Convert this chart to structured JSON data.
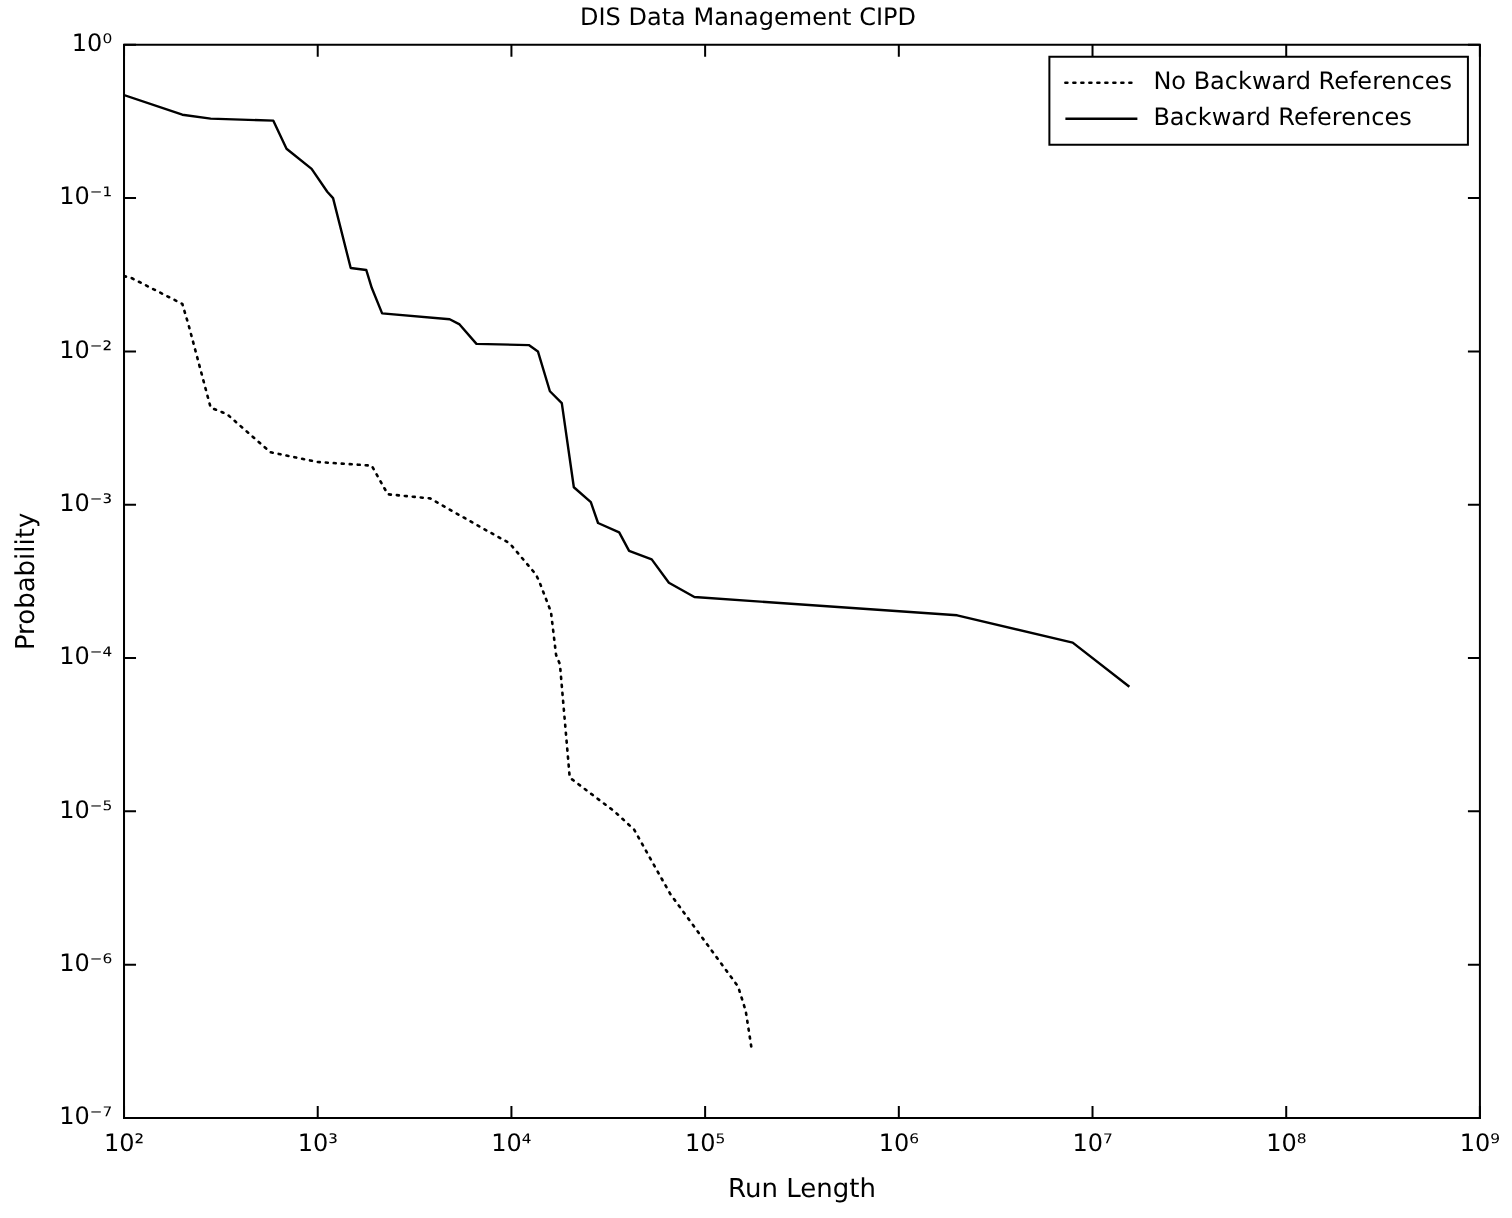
{
  "chart_data": {
    "type": "line",
    "title": "DIS Data Management CIPD",
    "xlabel": "Run Length",
    "ylabel": "Probability",
    "log": "xy",
    "grid": false,
    "legend": "top right",
    "marker": "none",
    "xlim": [
      100,
      1000000000
    ],
    "ylim": [
      1e-07,
      1
    ],
    "xticks": [
      {
        "value": 100,
        "label": "10²"
      },
      {
        "value": 1000,
        "label": "10³"
      },
      {
        "value": 10000,
        "label": "10⁴"
      },
      {
        "value": 100000,
        "label": "10⁵"
      },
      {
        "value": 1000000,
        "label": "10⁶"
      },
      {
        "value": 10000000,
        "label": "10⁷"
      },
      {
        "value": 100000000,
        "label": "10⁸"
      },
      {
        "value": 1000000000,
        "label": "10⁹"
      }
    ],
    "yticks": [
      {
        "value": 1e-07,
        "label": "10⁻⁷"
      },
      {
        "value": 1e-06,
        "label": "10⁻⁶"
      },
      {
        "value": 1e-05,
        "label": "10⁻⁵"
      },
      {
        "value": 0.0001,
        "label": "10⁻⁴"
      },
      {
        "value": 0.001,
        "label": "10⁻³"
      },
      {
        "value": 0.01,
        "label": "10⁻²"
      },
      {
        "value": 0.1,
        "label": "10⁻¹"
      },
      {
        "value": 1,
        "label": "10⁰"
      }
    ],
    "series": [
      {
        "name": "No Backward References",
        "color": "#000000",
        "line_style": "dotted",
        "x": [
          100,
          110,
          200,
          215,
          280,
          340,
          570,
          1000,
          1900,
          2300,
          3800,
          6600,
          9800,
          13400,
          14000,
          16000,
          17000,
          17800,
          20000,
          34000,
          43000,
          66000,
          105000,
          148000,
          162000,
          174000
        ],
        "values": [
          0.031,
          0.03,
          0.0204,
          0.015,
          0.0043,
          0.0039,
          0.0022,
          0.0019,
          0.0018,
          0.00117,
          0.0011,
          0.00074,
          0.00056,
          0.00035,
          0.00031,
          0.0002,
          0.000105,
          9.1e-05,
          1.66e-05,
          1e-05,
          7.6e-06,
          2.9e-06,
          1.3e-06,
          7.2e-07,
          5e-07,
          2.8e-07
        ]
      },
      {
        "name": "Backward References",
        "color": "#000000",
        "line_style": "solid",
        "x": [
          100,
          200,
          280,
          590,
          690,
          930,
          1120,
          1200,
          1480,
          1780,
          1900,
          2150,
          4800,
          5400,
          6600,
          12300,
          13700,
          15800,
          18200,
          21000,
          25700,
          28000,
          36000,
          40500,
          53000,
          65000,
          88000,
          2000000,
          7900000,
          15500000
        ],
        "values": [
          0.47,
          0.35,
          0.33,
          0.32,
          0.21,
          0.155,
          0.11,
          0.1,
          0.035,
          0.034,
          0.026,
          0.0177,
          0.0162,
          0.015,
          0.0112,
          0.011,
          0.01,
          0.0055,
          0.0046,
          0.0013,
          0.00104,
          0.00076,
          0.00066,
          0.0005,
          0.00044,
          0.00031,
          0.00025,
          0.00019,
          0.000126,
          6.5e-05
        ]
      }
    ]
  }
}
